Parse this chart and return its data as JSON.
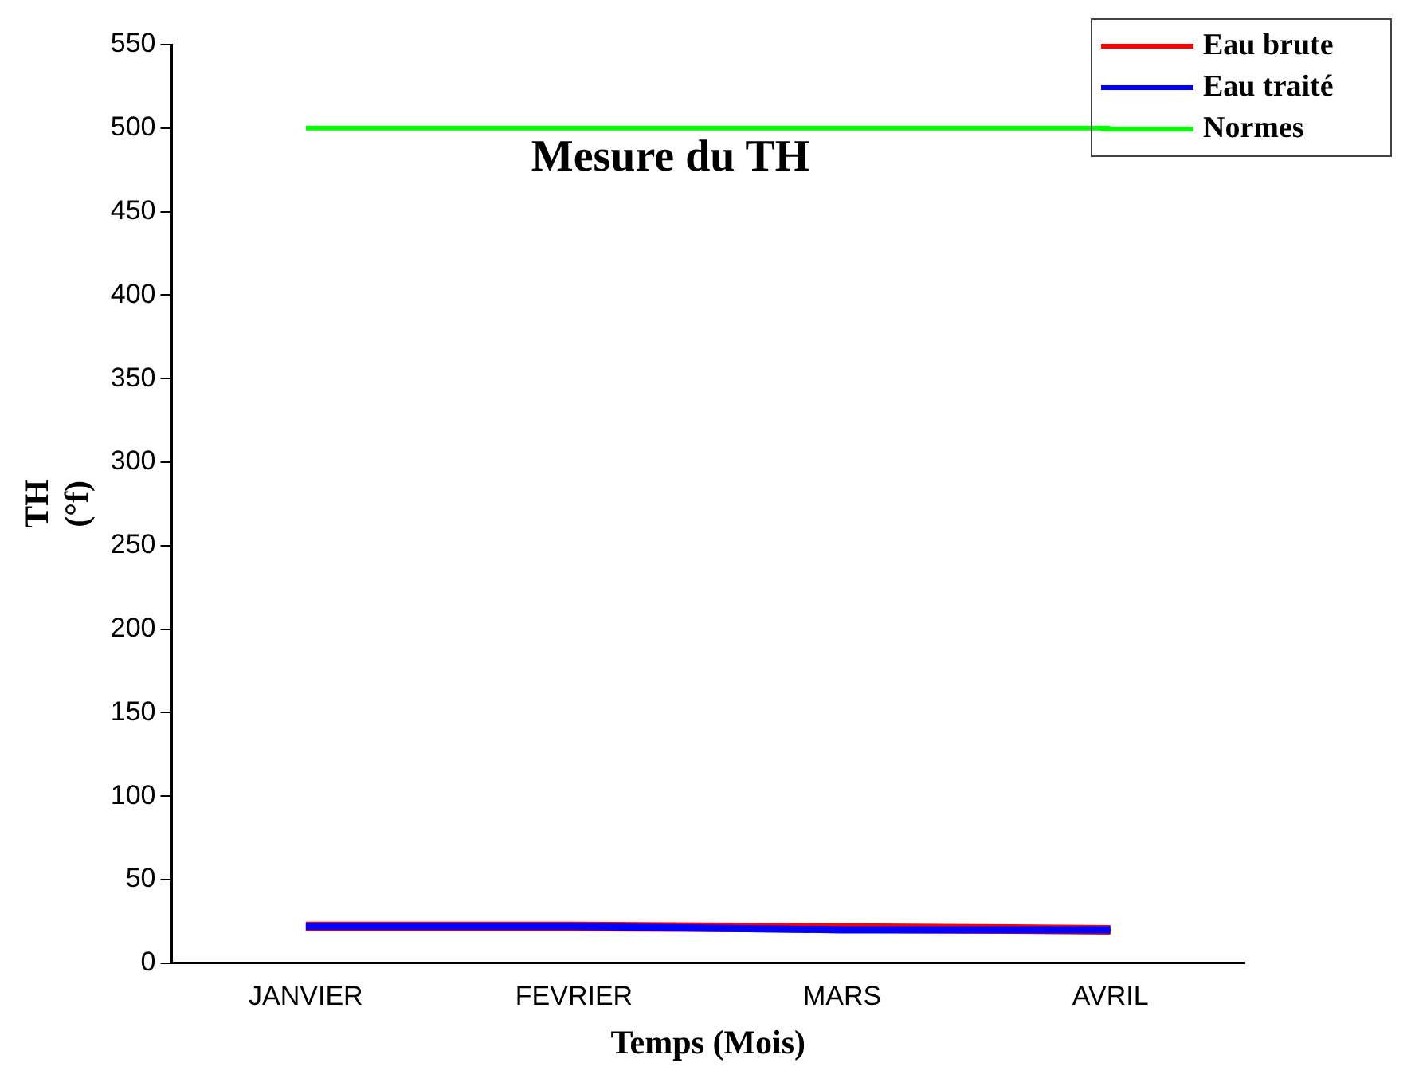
{
  "chart_data": {
    "type": "line",
    "title": "Mesure du TH",
    "xlabel": "Temps (Mois)",
    "ylabel": "TH\n(°f)",
    "categories": [
      "JANVIER",
      "FEVRIER",
      "MARS",
      "AVRIL"
    ],
    "series": [
      {
        "name": "Eau brute",
        "color": "#ff0000",
        "values": [
          22,
          22,
          21,
          20
        ]
      },
      {
        "name": "Eau traité",
        "color": "#0000ff",
        "values": [
          22,
          22,
          20,
          20
        ]
      },
      {
        "name": "Normes",
        "color": "#00ff00",
        "values": [
          500,
          500,
          500,
          500
        ]
      }
    ],
    "ylim": [
      0,
      550
    ],
    "yticks": [
      0,
      50,
      100,
      150,
      200,
      250,
      300,
      350,
      400,
      450,
      500,
      550
    ],
    "grid": false,
    "legend": "top right",
    "marker": "none",
    "line_style": "solid"
  }
}
